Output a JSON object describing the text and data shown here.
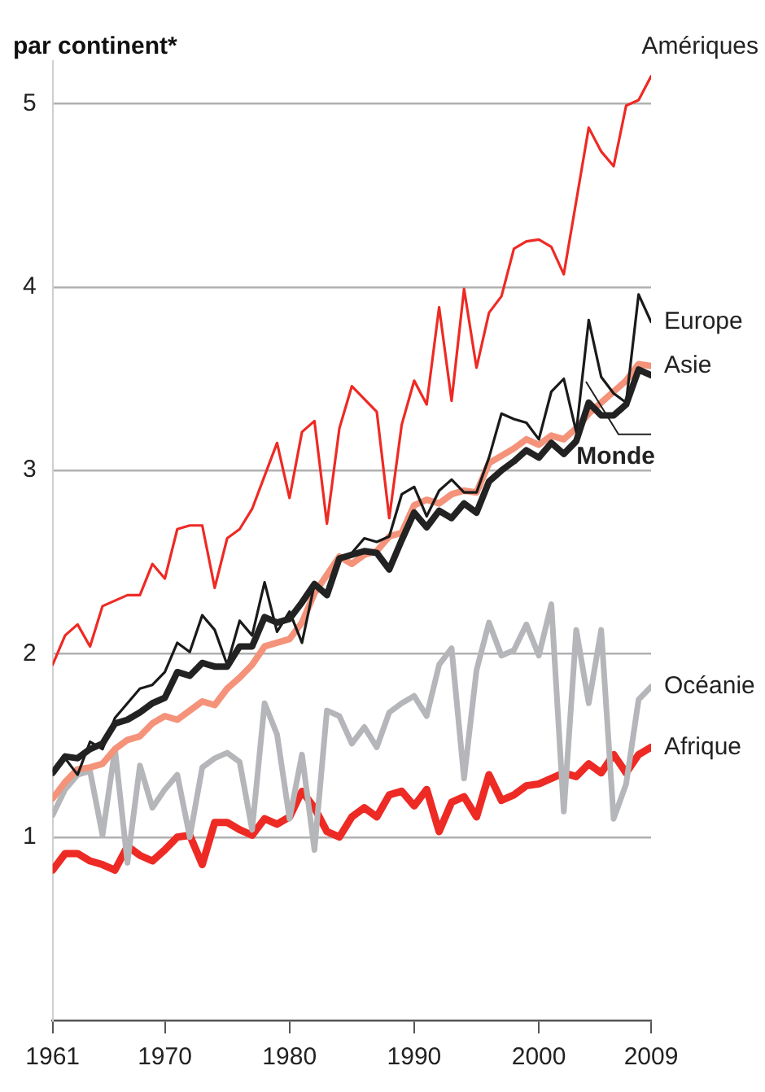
{
  "chart_data": {
    "type": "line",
    "title": "par continent*",
    "xlim": [
      1961,
      2009
    ],
    "xticks": [
      1961,
      1970,
      1980,
      1990,
      2000,
      2009
    ],
    "ylim": [
      0,
      5.3
    ],
    "yticks": [
      1,
      2,
      3,
      4,
      5
    ],
    "grid": "y",
    "legend": "right",
    "marker": "none",
    "line_style": "solid",
    "x": [
      1961,
      1962,
      1963,
      1964,
      1965,
      1966,
      1967,
      1968,
      1969,
      1970,
      1971,
      1972,
      1973,
      1974,
      1975,
      1976,
      1977,
      1978,
      1979,
      1980,
      1981,
      1982,
      1983,
      1984,
      1985,
      1986,
      1987,
      1988,
      1989,
      1990,
      1991,
      1992,
      1993,
      1994,
      1995,
      1996,
      1997,
      1998,
      1999,
      2000,
      2001,
      2002,
      2003,
      2004,
      2005,
      2006,
      2007,
      2008,
      2009
    ],
    "series": [
      {
        "name": "Amériques",
        "color": "#ee2a24",
        "values": [
          1.94,
          2.1,
          2.16,
          2.04,
          2.26,
          2.29,
          2.32,
          2.32,
          2.49,
          2.41,
          2.68,
          2.7,
          2.7,
          2.36,
          2.63,
          2.68,
          2.79,
          2.97,
          3.15,
          2.85,
          3.21,
          3.27,
          2.71,
          3.23,
          3.46,
          3.39,
          3.32,
          2.74,
          3.25,
          3.49,
          3.36,
          3.89,
          3.38,
          3.99,
          3.56,
          3.86,
          3.95,
          4.21,
          4.25,
          4.26,
          4.22,
          4.07,
          4.47,
          4.87,
          4.74,
          4.66,
          4.99,
          5.02,
          5.15
        ]
      },
      {
        "name": "Monde",
        "color": "#222222",
        "values": [
          1.35,
          1.44,
          1.43,
          1.48,
          1.51,
          1.62,
          1.64,
          1.68,
          1.73,
          1.76,
          1.9,
          1.88,
          1.95,
          1.93,
          1.93,
          2.04,
          2.04,
          2.2,
          2.17,
          2.19,
          2.28,
          2.38,
          2.32,
          2.52,
          2.54,
          2.56,
          2.55,
          2.46,
          2.62,
          2.77,
          2.69,
          2.78,
          2.74,
          2.82,
          2.77,
          2.94,
          3.0,
          3.05,
          3.11,
          3.07,
          3.15,
          3.09,
          3.16,
          3.37,
          3.3,
          3.3,
          3.36,
          3.55,
          3.52
        ]
      },
      {
        "name": "Europe",
        "color": "#1a1a1a",
        "values": [
          1.36,
          1.43,
          1.34,
          1.52,
          1.48,
          1.65,
          1.73,
          1.81,
          1.83,
          1.9,
          2.06,
          2.01,
          2.21,
          2.13,
          1.94,
          2.18,
          2.1,
          2.39,
          2.12,
          2.23,
          2.06,
          2.38,
          2.33,
          2.52,
          2.55,
          2.63,
          2.61,
          2.64,
          2.87,
          2.91,
          2.75,
          2.89,
          2.95,
          2.88,
          2.88,
          3.07,
          3.31,
          3.28,
          3.26,
          3.17,
          3.43,
          3.5,
          3.21,
          3.82,
          3.51,
          3.42,
          3.37,
          3.96,
          3.81
        ]
      },
      {
        "name": "Asie",
        "color": "#f4937a",
        "values": [
          1.21,
          1.3,
          1.37,
          1.38,
          1.4,
          1.48,
          1.53,
          1.55,
          1.62,
          1.66,
          1.64,
          1.69,
          1.74,
          1.72,
          1.81,
          1.87,
          1.94,
          2.04,
          2.06,
          2.08,
          2.17,
          2.33,
          2.43,
          2.53,
          2.49,
          2.54,
          2.56,
          2.64,
          2.66,
          2.81,
          2.84,
          2.82,
          2.87,
          2.89,
          2.88,
          3.04,
          3.08,
          3.12,
          3.17,
          3.14,
          3.19,
          3.17,
          3.23,
          3.31,
          3.37,
          3.43,
          3.49,
          3.58,
          3.57
        ]
      },
      {
        "name": "Océanie",
        "color": "#b5b6b9",
        "values": [
          1.12,
          1.26,
          1.34,
          1.36,
          1.01,
          1.48,
          0.86,
          1.39,
          1.16,
          1.26,
          1.34,
          1.0,
          1.38,
          1.43,
          1.46,
          1.41,
          1.04,
          1.73,
          1.56,
          1.1,
          1.45,
          0.93,
          1.69,
          1.66,
          1.51,
          1.6,
          1.49,
          1.68,
          1.73,
          1.77,
          1.66,
          1.94,
          2.03,
          1.32,
          1.91,
          2.17,
          1.99,
          2.02,
          2.16,
          1.99,
          2.27,
          1.14,
          2.13,
          1.73,
          2.13,
          1.1,
          1.29,
          1.75,
          1.82
        ]
      },
      {
        "name": "Afrique",
        "color": "#ee2a24",
        "values": [
          0.82,
          0.91,
          0.91,
          0.87,
          0.85,
          0.82,
          0.95,
          0.9,
          0.87,
          0.93,
          1.0,
          1.01,
          0.85,
          1.08,
          1.08,
          1.04,
          1.01,
          1.1,
          1.07,
          1.11,
          1.25,
          1.16,
          1.03,
          1.0,
          1.11,
          1.16,
          1.11,
          1.23,
          1.25,
          1.17,
          1.26,
          1.03,
          1.19,
          1.22,
          1.11,
          1.34,
          1.2,
          1.23,
          1.28,
          1.29,
          1.32,
          1.35,
          1.33,
          1.4,
          1.35,
          1.45,
          1.35,
          1.45,
          1.49
        ]
      }
    ]
  }
}
